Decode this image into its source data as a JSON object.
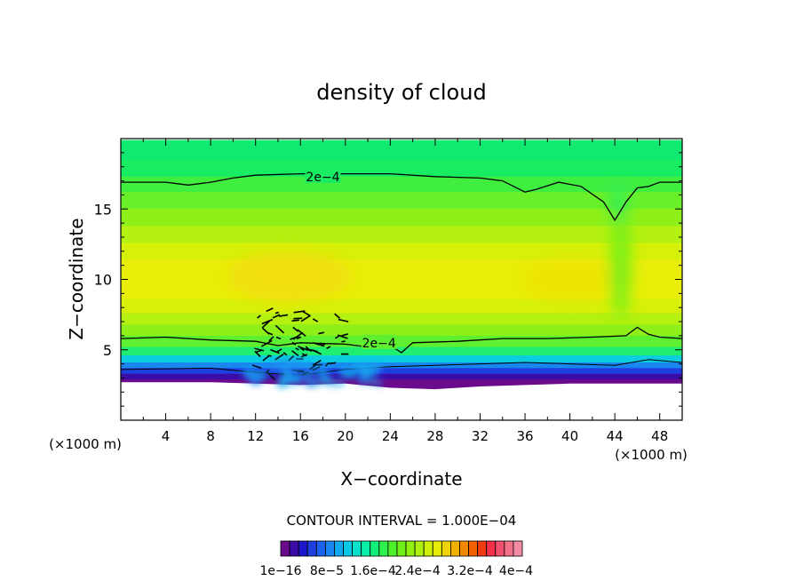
{
  "chart_data": {
    "type": "heatmap",
    "title": "density of cloud",
    "xlabel": "X−coordinate",
    "ylabel": "Z−coordinate",
    "x_unit_left": "(×1000 m)",
    "x_unit_right": "(×1000 m)",
    "xlim": [
      0,
      50
    ],
    "ylim": [
      0,
      20
    ],
    "x_ticks": [
      4,
      8,
      12,
      16,
      20,
      24,
      28,
      32,
      36,
      40,
      44,
      48
    ],
    "y_ticks": [
      5,
      10,
      15
    ],
    "contour_interval_text": "CONTOUR INTERVAL = 1.000E−04",
    "contour_labels": [
      "2e−4",
      "2e−4"
    ],
    "contour_label_positions": [
      {
        "x": 18,
        "z": 17.3
      },
      {
        "x": 23,
        "z": 5.5
      }
    ],
    "colorbar": {
      "colors": [
        "#6a0a8c",
        "#3c0ca8",
        "#1a18c8",
        "#1e3fe0",
        "#1c62ee",
        "#1a86f0",
        "#12a8ee",
        "#0cc8e6",
        "#08e0cc",
        "#06eea8",
        "#10f07a",
        "#2ef04e",
        "#4ef02c",
        "#6ef018",
        "#90f010",
        "#b0f010",
        "#ccf008",
        "#e6ee08",
        "#f0d408",
        "#f2b000",
        "#f28800",
        "#f26000",
        "#f23c10",
        "#f2304a",
        "#f25070",
        "#f27088",
        "#f28ca4"
      ],
      "tick_labels": [
        "1e−16",
        "8e−5",
        "1.6e−4",
        "2.4e−4",
        "3.2e−4",
        "4e−4"
      ]
    },
    "z_bands": [
      {
        "z_top": 19.9,
        "color": "#10ea70"
      },
      {
        "z_top": 18.5,
        "color": "#18ec62"
      },
      {
        "z_top": 17.3,
        "color": "#40ee40"
      },
      {
        "z_top": 16.2,
        "color": "#6af028"
      },
      {
        "z_top": 15.0,
        "color": "#8ef018"
      },
      {
        "z_top": 13.8,
        "color": "#b4f010"
      },
      {
        "z_top": 12.6,
        "color": "#d6f008"
      },
      {
        "z_top": 11.4,
        "color": "#e8ee08"
      },
      {
        "z_top": 8.6,
        "color": "#d6f008"
      },
      {
        "z_top": 7.6,
        "color": "#b4f010"
      },
      {
        "z_top": 6.8,
        "color": "#8ef018"
      },
      {
        "z_top": 6.0,
        "color": "#5ef030"
      },
      {
        "z_top": 5.2,
        "color": "#20ee70"
      },
      {
        "z_top": 4.6,
        "color": "#0ccce0"
      },
      {
        "z_top": 4.1,
        "color": "#1a86f0"
      },
      {
        "z_top": 3.7,
        "color": "#1e3fe0"
      },
      {
        "z_top": 3.3,
        "color": "#3c0ca8"
      },
      {
        "z_top": 2.9,
        "color": "#6a0a8c"
      }
    ],
    "contour_upper": [
      [
        0,
        16.9
      ],
      [
        4,
        16.9
      ],
      [
        6,
        16.7
      ],
      [
        8,
        16.9
      ],
      [
        10,
        17.2
      ],
      [
        12,
        17.4
      ],
      [
        16,
        17.5
      ],
      [
        20,
        17.5
      ],
      [
        24,
        17.5
      ],
      [
        28,
        17.3
      ],
      [
        32,
        17.2
      ],
      [
        34,
        17.0
      ],
      [
        36,
        16.2
      ],
      [
        37,
        16.4
      ],
      [
        39,
        16.9
      ],
      [
        41,
        16.6
      ],
      [
        43,
        15.5
      ],
      [
        44,
        14.2
      ],
      [
        45,
        15.5
      ],
      [
        46,
        16.5
      ],
      [
        47,
        16.6
      ],
      [
        48,
        16.9
      ],
      [
        50,
        16.9
      ]
    ],
    "contour_lower": [
      [
        0,
        5.8
      ],
      [
        4,
        5.9
      ],
      [
        8,
        5.7
      ],
      [
        12,
        5.6
      ],
      [
        14,
        5.3
      ],
      [
        16,
        5.5
      ],
      [
        20,
        5.4
      ],
      [
        22,
        5.2
      ],
      [
        24,
        5.3
      ],
      [
        25,
        4.8
      ],
      [
        26,
        5.5
      ],
      [
        30,
        5.6
      ],
      [
        34,
        5.8
      ],
      [
        38,
        5.8
      ],
      [
        42,
        5.9
      ],
      [
        45,
        6.0
      ],
      [
        46,
        6.6
      ],
      [
        47,
        6.1
      ],
      [
        48,
        5.9
      ],
      [
        50,
        5.8
      ]
    ],
    "contour_base": [
      [
        0,
        3.6
      ],
      [
        8,
        3.7
      ],
      [
        12,
        3.4
      ],
      [
        16,
        3.2
      ],
      [
        20,
        3.6
      ],
      [
        24,
        3.8
      ],
      [
        28,
        3.9
      ],
      [
        32,
        4.0
      ],
      [
        36,
        4.1
      ],
      [
        40,
        4.0
      ],
      [
        44,
        3.9
      ],
      [
        47,
        4.3
      ],
      [
        50,
        4.1
      ]
    ],
    "cloud_bottom": [
      [
        0,
        2.7
      ],
      [
        8,
        2.7
      ],
      [
        12,
        2.6
      ],
      [
        16,
        2.5
      ],
      [
        20,
        2.6
      ],
      [
        24,
        2.3
      ],
      [
        28,
        2.2
      ],
      [
        32,
        2.4
      ],
      [
        36,
        2.5
      ],
      [
        40,
        2.6
      ],
      [
        44,
        2.6
      ],
      [
        50,
        2.6
      ]
    ]
  }
}
